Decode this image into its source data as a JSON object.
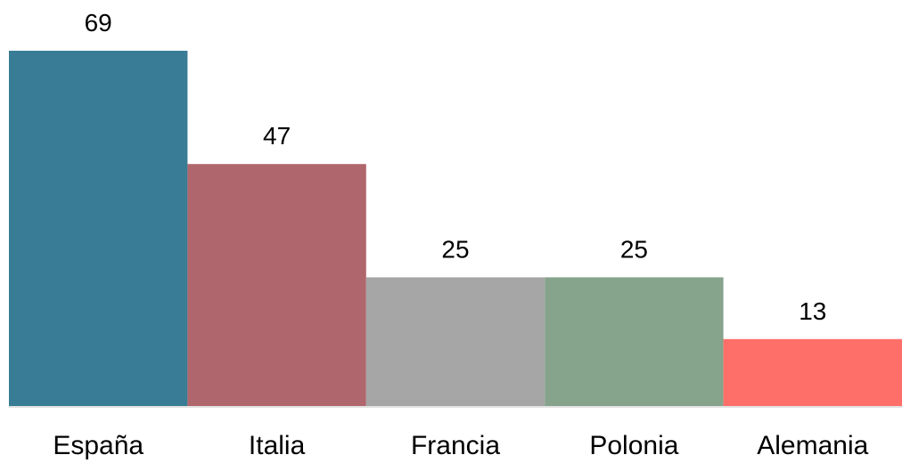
{
  "chart_data": {
    "type": "bar",
    "categories": [
      "España",
      "Italia",
      "Francia",
      "Polonia",
      "Alemania"
    ],
    "values": [
      69,
      47,
      25,
      25,
      13
    ],
    "colors": [
      "#387d95",
      "#b0666d",
      "#a6a6a6",
      "#86a38b",
      "#ff6f69"
    ],
    "ylim": [
      0,
      69
    ],
    "grid": false,
    "legend": "none",
    "title": "",
    "xlabel": "",
    "ylabel": ""
  }
}
